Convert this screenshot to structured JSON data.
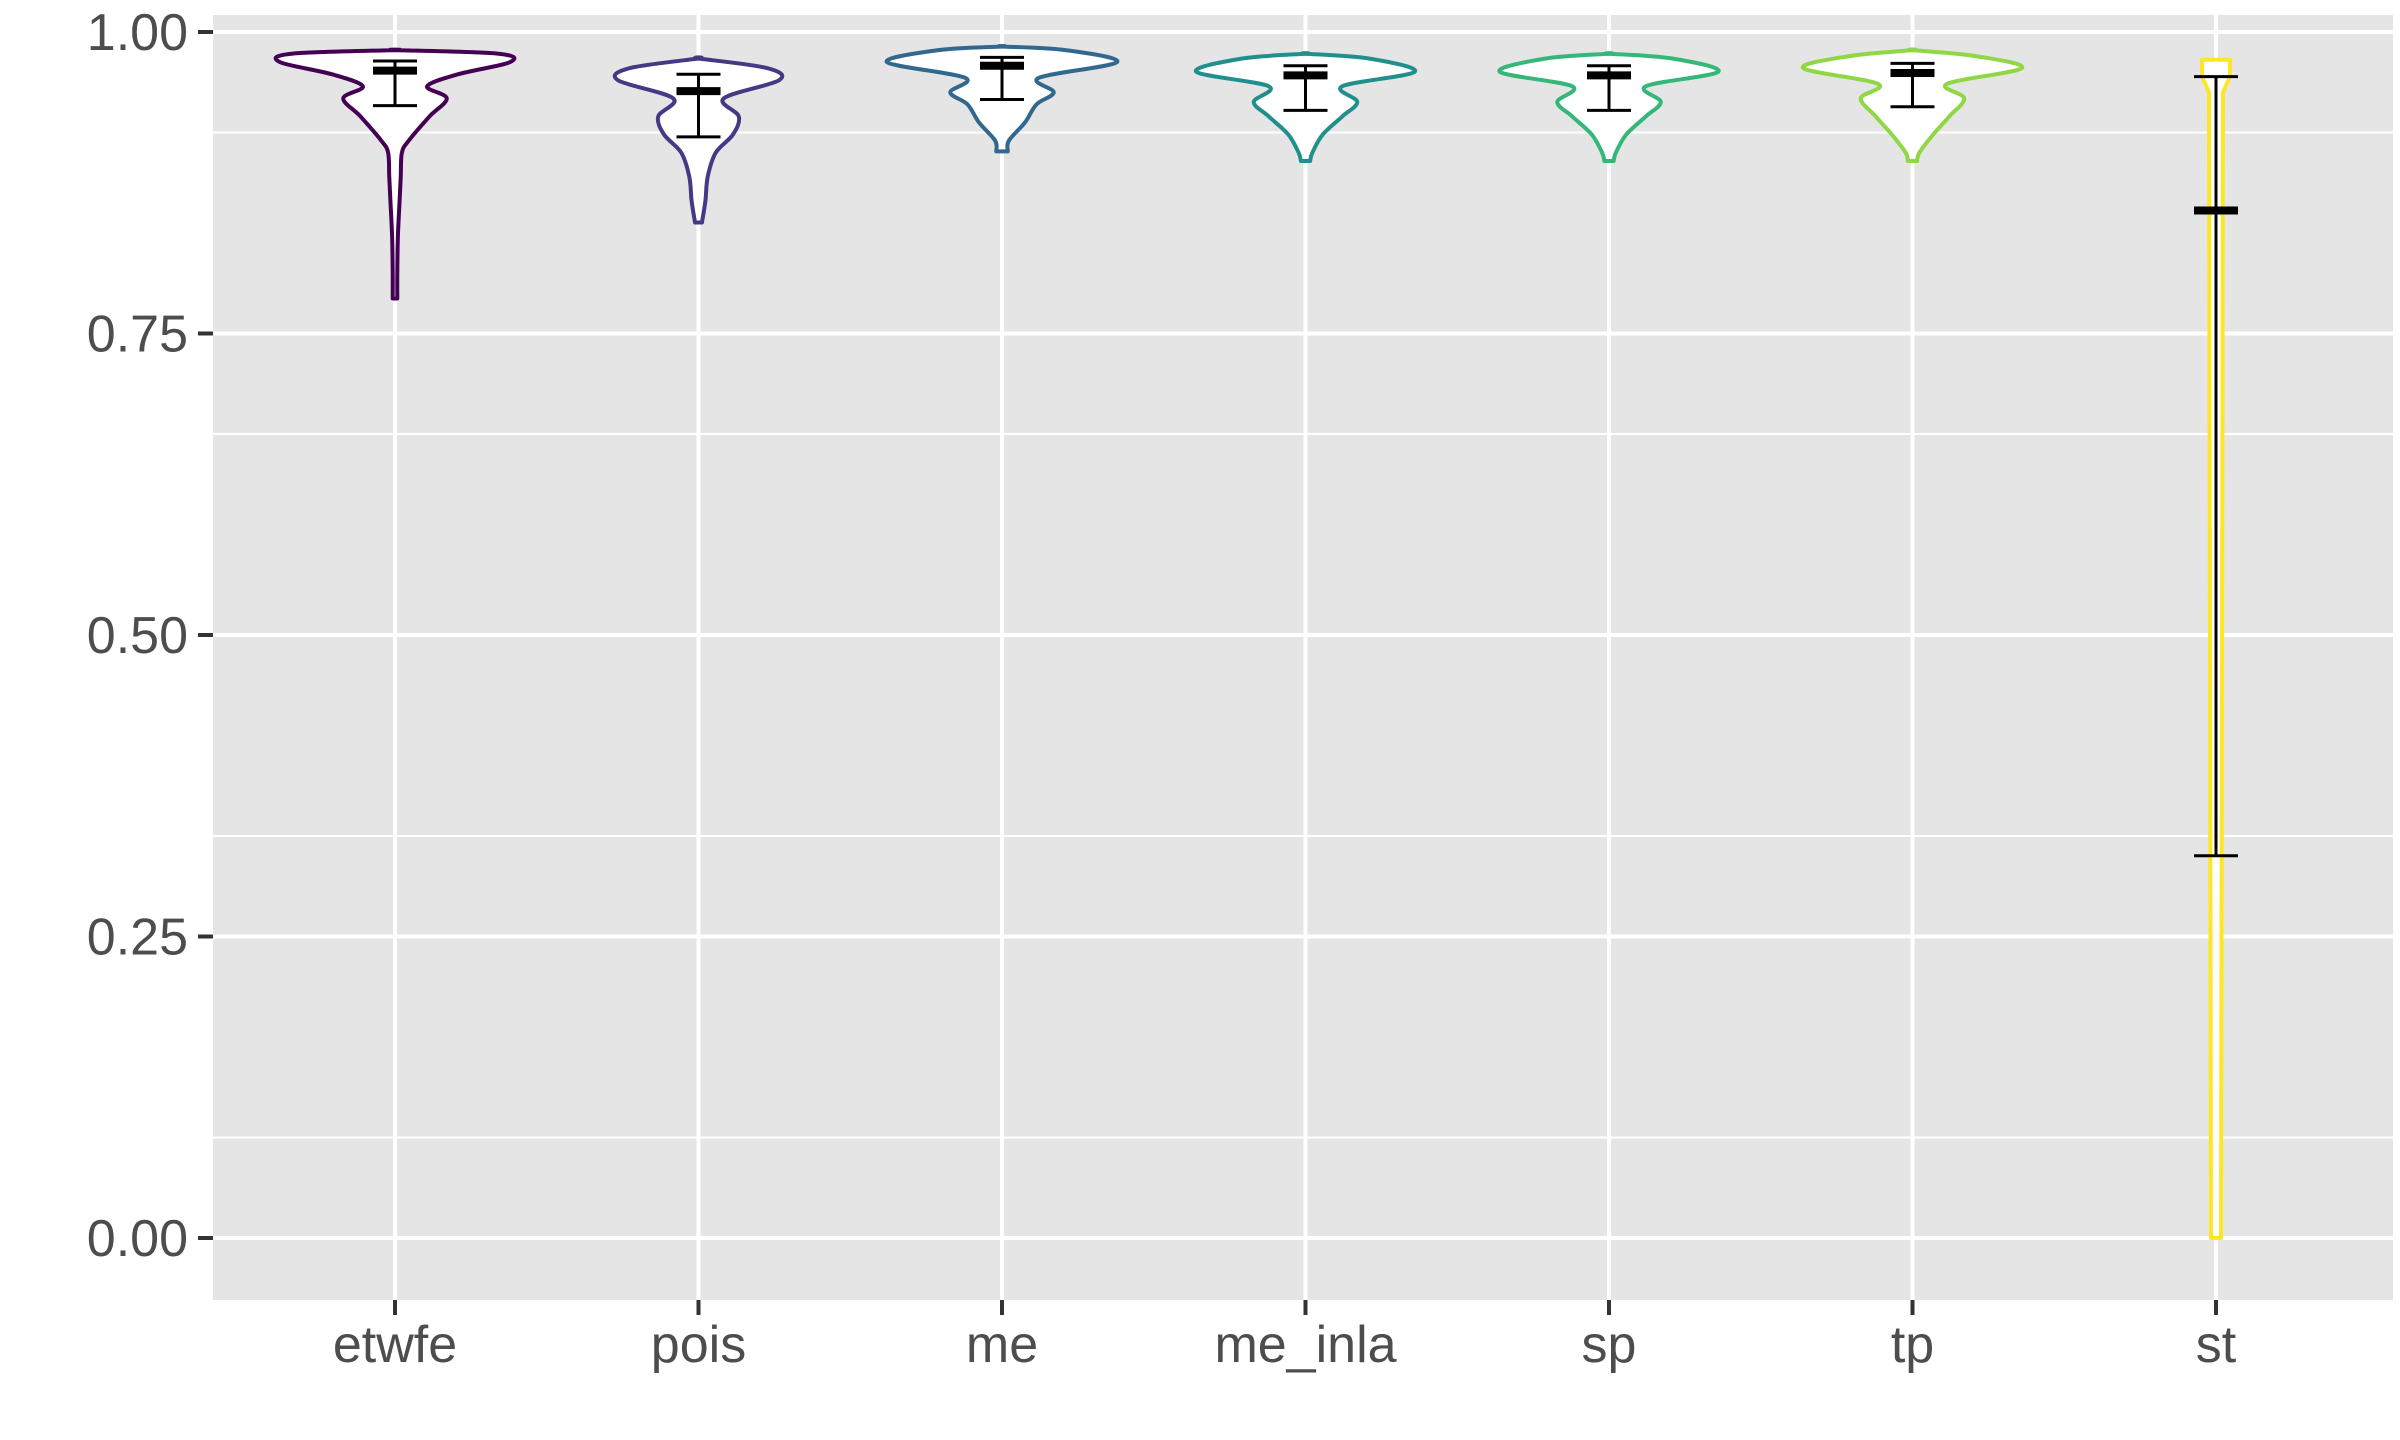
{
  "chart_data": {
    "type": "violin",
    "title": "",
    "xlabel": "",
    "ylabel": "",
    "ylim": [
      0,
      1
    ],
    "y_ticks": [
      "0.00",
      "0.25",
      "0.50",
      "0.75",
      "1.00"
    ],
    "y_tick_values": [
      0,
      0.25,
      0.5,
      0.75,
      1.0
    ],
    "y_minor_gridlines": [
      0.0833,
      0.3333,
      0.6667,
      0.9167
    ],
    "grid": true,
    "legend": "none",
    "panel_background": "#e5e5e5",
    "gridline_color": "#ffffff",
    "categories": [
      "etwfe",
      "pois",
      "me",
      "me_inla",
      "sp",
      "tp",
      "st"
    ],
    "series": [
      {
        "category": "etwfe",
        "color": "#440154",
        "min": 0.779,
        "max": 0.985,
        "median": 0.968,
        "ci_low": 0.939,
        "ci_high": 0.976,
        "density": [
          [
            0.779,
            0.02
          ],
          [
            0.8,
            0.02
          ],
          [
            0.83,
            0.025
          ],
          [
            0.86,
            0.04
          ],
          [
            0.88,
            0.05
          ],
          [
            0.9,
            0.06
          ],
          [
            0.91,
            0.12
          ],
          [
            0.93,
            0.3
          ],
          [
            0.945,
            0.45
          ],
          [
            0.955,
            0.28
          ],
          [
            0.965,
            0.55
          ],
          [
            0.975,
            1.0
          ],
          [
            0.982,
            0.9
          ],
          [
            0.985,
            0.0
          ]
        ]
      },
      {
        "category": "pois",
        "color": "#443a83",
        "min": 0.842,
        "max": 0.978,
        "median": 0.951,
        "ci_low": 0.913,
        "ci_high": 0.965,
        "density": [
          [
            0.842,
            0.03
          ],
          [
            0.86,
            0.06
          ],
          [
            0.88,
            0.08
          ],
          [
            0.9,
            0.15
          ],
          [
            0.915,
            0.3
          ],
          [
            0.93,
            0.35
          ],
          [
            0.945,
            0.22
          ],
          [
            0.96,
            0.7
          ],
          [
            0.97,
            0.6
          ],
          [
            0.978,
            0.0
          ]
        ]
      },
      {
        "category": "me",
        "color": "#31688e",
        "min": 0.901,
        "max": 0.988,
        "median": 0.972,
        "ci_low": 0.944,
        "ci_high": 0.979,
        "density": [
          [
            0.901,
            0.05
          ],
          [
            0.91,
            0.06
          ],
          [
            0.925,
            0.2
          ],
          [
            0.94,
            0.3
          ],
          [
            0.95,
            0.45
          ],
          [
            0.962,
            0.32
          ],
          [
            0.975,
            1.0
          ],
          [
            0.985,
            0.55
          ],
          [
            0.988,
            0.0
          ]
        ]
      },
      {
        "category": "me_inla",
        "color": "#21908d",
        "min": 0.893,
        "max": 0.982,
        "median": 0.964,
        "ci_low": 0.935,
        "ci_high": 0.972,
        "density": [
          [
            0.893,
            0.04
          ],
          [
            0.9,
            0.06
          ],
          [
            0.915,
            0.15
          ],
          [
            0.93,
            0.32
          ],
          [
            0.942,
            0.45
          ],
          [
            0.955,
            0.32
          ],
          [
            0.967,
            0.95
          ],
          [
            0.978,
            0.55
          ],
          [
            0.982,
            0.0
          ]
        ]
      },
      {
        "category": "sp",
        "color": "#35b779",
        "min": 0.893,
        "max": 0.982,
        "median": 0.964,
        "ci_low": 0.935,
        "ci_high": 0.972,
        "density": [
          [
            0.893,
            0.04
          ],
          [
            0.9,
            0.06
          ],
          [
            0.915,
            0.15
          ],
          [
            0.93,
            0.32
          ],
          [
            0.942,
            0.45
          ],
          [
            0.955,
            0.32
          ],
          [
            0.967,
            0.95
          ],
          [
            0.978,
            0.55
          ],
          [
            0.982,
            0.0
          ]
        ]
      },
      {
        "category": "tp",
        "color": "#8fd744",
        "min": 0.893,
        "max": 0.985,
        "median": 0.966,
        "ci_low": 0.938,
        "ci_high": 0.974,
        "density": [
          [
            0.893,
            0.04
          ],
          [
            0.9,
            0.06
          ],
          [
            0.915,
            0.18
          ],
          [
            0.93,
            0.32
          ],
          [
            0.945,
            0.45
          ],
          [
            0.957,
            0.3
          ],
          [
            0.97,
            0.95
          ],
          [
            0.98,
            0.55
          ],
          [
            0.985,
            0.0
          ]
        ]
      },
      {
        "category": "st",
        "color": "#fde725",
        "min": 0.0,
        "max": 0.977,
        "median": 0.852,
        "ci_low": 0.317,
        "ci_high": 0.963,
        "density": [
          [
            0.0,
            0.03
          ],
          [
            0.03,
            0.05
          ],
          [
            0.25,
            0.05
          ],
          [
            0.5,
            0.05
          ],
          [
            0.75,
            0.05
          ],
          [
            0.85,
            0.05
          ],
          [
            0.95,
            0.06
          ],
          [
            0.962,
            0.12
          ],
          [
            0.977,
            0.12
          ]
        ]
      }
    ]
  }
}
